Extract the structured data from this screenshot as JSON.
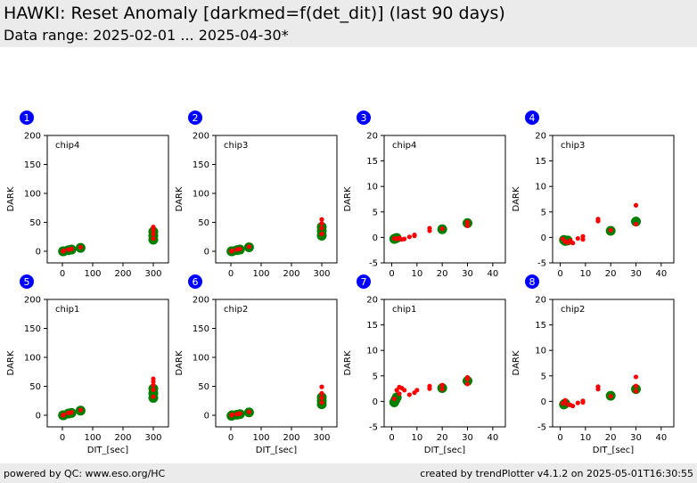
{
  "header": {
    "title": "HAWKI: Reset Anomaly [darkmed=f(det_dit)] (last 90 days)",
    "subtitle": "Data range: 2025-02-01 ... 2025-04-30*"
  },
  "footer": {
    "left": "powered by QC: www.eso.org/HC",
    "right": "created by trendPlotter v4.1.2 on 2025-05-01T16:30:55"
  },
  "colors": {
    "marker_large": "#008000",
    "marker_small": "#ff0000",
    "badge": "#0000ff",
    "header_bg": "#ebebeb"
  },
  "chart_data": [
    {
      "type": "scatter",
      "badge": "1",
      "label": "chip4",
      "xlabel": "",
      "ylabel": "DARK",
      "xlim": [
        -50,
        350
      ],
      "ylim": [
        -20,
        200
      ],
      "xticks": [
        0,
        100,
        200,
        300
      ],
      "yticks": [
        0,
        50,
        100,
        150,
        200
      ],
      "series": [
        {
          "marker": "large",
          "x": [
            2,
            4,
            20,
            30,
            60,
            300,
            300,
            300
          ],
          "y": [
            0,
            0,
            2,
            3,
            6,
            20,
            27,
            34
          ]
        },
        {
          "marker": "small",
          "x": [
            2,
            4,
            20,
            30,
            60,
            300,
            300,
            300,
            300
          ],
          "y": [
            0,
            1,
            3,
            4,
            7,
            22,
            30,
            37,
            42
          ]
        }
      ]
    },
    {
      "type": "scatter",
      "badge": "2",
      "label": "chip3",
      "xlabel": "",
      "ylabel": "DARK",
      "xlim": [
        -50,
        350
      ],
      "ylim": [
        -20,
        200
      ],
      "xticks": [
        0,
        100,
        200,
        300
      ],
      "yticks": [
        0,
        50,
        100,
        150,
        200
      ],
      "series": [
        {
          "marker": "large",
          "x": [
            2,
            4,
            20,
            30,
            60,
            300,
            300,
            300
          ],
          "y": [
            0,
            0,
            2,
            3,
            7,
            27,
            35,
            42
          ]
        },
        {
          "marker": "small",
          "x": [
            2,
            4,
            20,
            30,
            60,
            300,
            300,
            300,
            300
          ],
          "y": [
            0,
            1,
            3,
            4,
            8,
            30,
            40,
            48,
            55
          ]
        }
      ]
    },
    {
      "type": "scatter",
      "badge": "3",
      "label": "chip4",
      "xlabel": "",
      "ylabel": "DARK",
      "xlim": [
        -3,
        45
      ],
      "ylim": [
        -5,
        20
      ],
      "xticks": [
        0,
        10,
        20,
        30,
        40
      ],
      "yticks": [
        -5,
        0,
        5,
        10,
        15,
        20
      ],
      "series": [
        {
          "marker": "large",
          "x": [
            1,
            1.5,
            2,
            20,
            30
          ],
          "y": [
            -0.3,
            -0.2,
            -0.1,
            1.6,
            2.8
          ]
        },
        {
          "marker": "small",
          "x": [
            1,
            2,
            3,
            4,
            5,
            7,
            9,
            9,
            15,
            15,
            20,
            30,
            30
          ],
          "y": [
            -0.2,
            -0.3,
            -0.1,
            -0.4,
            -0.3,
            0.1,
            0.3,
            0.5,
            1.3,
            1.8,
            1.7,
            2.3,
            3.0
          ]
        }
      ]
    },
    {
      "type": "scatter",
      "badge": "4",
      "label": "chip3",
      "xlabel": "",
      "ylabel": "DARK",
      "xlim": [
        -3,
        45
      ],
      "ylim": [
        -5,
        20
      ],
      "xticks": [
        0,
        10,
        20,
        30,
        40
      ],
      "yticks": [
        -5,
        0,
        5,
        10,
        15,
        20
      ],
      "series": [
        {
          "marker": "large",
          "x": [
            1.5,
            2,
            3,
            20,
            30
          ],
          "y": [
            -0.5,
            -0.7,
            -0.6,
            1.3,
            3.1
          ]
        },
        {
          "marker": "small",
          "x": [
            1,
            2,
            3,
            4,
            5,
            7,
            9,
            9,
            15,
            15,
            20,
            30,
            30
          ],
          "y": [
            -0.3,
            -0.8,
            -1.0,
            -0.6,
            -1.1,
            -0.2,
            -0.4,
            0.2,
            3.2,
            3.6,
            1.4,
            2.6,
            6.3
          ]
        }
      ]
    },
    {
      "type": "scatter",
      "badge": "5",
      "label": "chip1",
      "xlabel": "DIT_[sec]",
      "ylabel": "DARK",
      "xlim": [
        -50,
        350
      ],
      "ylim": [
        -20,
        200
      ],
      "xticks": [
        0,
        100,
        200,
        300
      ],
      "yticks": [
        0,
        50,
        100,
        150,
        200
      ],
      "series": [
        {
          "marker": "large",
          "x": [
            2,
            4,
            20,
            30,
            60,
            300,
            300,
            300
          ],
          "y": [
            0,
            0,
            3,
            4,
            8,
            30,
            38,
            46
          ]
        },
        {
          "marker": "small",
          "x": [
            2,
            4,
            20,
            30,
            60,
            300,
            300,
            300,
            300,
            300
          ],
          "y": [
            0,
            1,
            4,
            5,
            9,
            32,
            44,
            52,
            58,
            63
          ]
        }
      ]
    },
    {
      "type": "scatter",
      "badge": "6",
      "label": "chip2",
      "xlabel": "DIT_[sec]",
      "ylabel": "DARK",
      "xlim": [
        -50,
        350
      ],
      "ylim": [
        -20,
        200
      ],
      "xticks": [
        0,
        100,
        200,
        300
      ],
      "yticks": [
        0,
        50,
        100,
        150,
        200
      ],
      "series": [
        {
          "marker": "large",
          "x": [
            2,
            4,
            20,
            30,
            60,
            300,
            300,
            300
          ],
          "y": [
            -1,
            0,
            1,
            2,
            5,
            19,
            25,
            31
          ]
        },
        {
          "marker": "small",
          "x": [
            2,
            4,
            20,
            30,
            60,
            300,
            300,
            300,
            300
          ],
          "y": [
            0,
            1,
            2,
            3,
            6,
            22,
            30,
            38,
            49
          ]
        }
      ]
    },
    {
      "type": "scatter",
      "badge": "7",
      "label": "chip1",
      "xlabel": "DIT_[sec]",
      "ylabel": "DARK",
      "xlim": [
        -3,
        45
      ],
      "ylim": [
        -5,
        20
      ],
      "xticks": [
        0,
        10,
        20,
        30,
        40
      ],
      "yticks": [
        -5,
        0,
        5,
        10,
        15,
        20
      ],
      "series": [
        {
          "marker": "large",
          "x": [
            1,
            1.5,
            2,
            20,
            30
          ],
          "y": [
            -0.2,
            0.3,
            0.8,
            2.6,
            4.0
          ]
        },
        {
          "marker": "small",
          "x": [
            1,
            2,
            3,
            3,
            4,
            5,
            7,
            9,
            10,
            15,
            15,
            20,
            20,
            30,
            30,
            30
          ],
          "y": [
            0.5,
            2.2,
            2.8,
            1.5,
            2.6,
            2.2,
            1.3,
            1.7,
            2.2,
            2.5,
            3.0,
            2.4,
            3.2,
            3.4,
            4.4,
            4.7
          ]
        }
      ]
    },
    {
      "type": "scatter",
      "badge": "8",
      "label": "chip2",
      "xlabel": "DIT_[sec]",
      "ylabel": "DARK",
      "xlim": [
        -3,
        45
      ],
      "ylim": [
        -5,
        20
      ],
      "xticks": [
        0,
        10,
        20,
        30,
        40
      ],
      "yticks": [
        -5,
        0,
        5,
        10,
        15,
        20
      ],
      "series": [
        {
          "marker": "large",
          "x": [
            1.5,
            2,
            20,
            30
          ],
          "y": [
            -0.6,
            -0.4,
            1.1,
            2.4
          ]
        },
        {
          "marker": "small",
          "x": [
            1,
            2,
            3,
            4,
            5,
            7,
            9,
            9,
            15,
            15,
            20,
            30,
            30,
            30
          ],
          "y": [
            -0.4,
            0.2,
            -0.6,
            -0.7,
            -0.9,
            -0.3,
            0.1,
            -0.2,
            2.4,
            2.9,
            1.0,
            2.0,
            3.0,
            4.8
          ]
        }
      ]
    }
  ]
}
